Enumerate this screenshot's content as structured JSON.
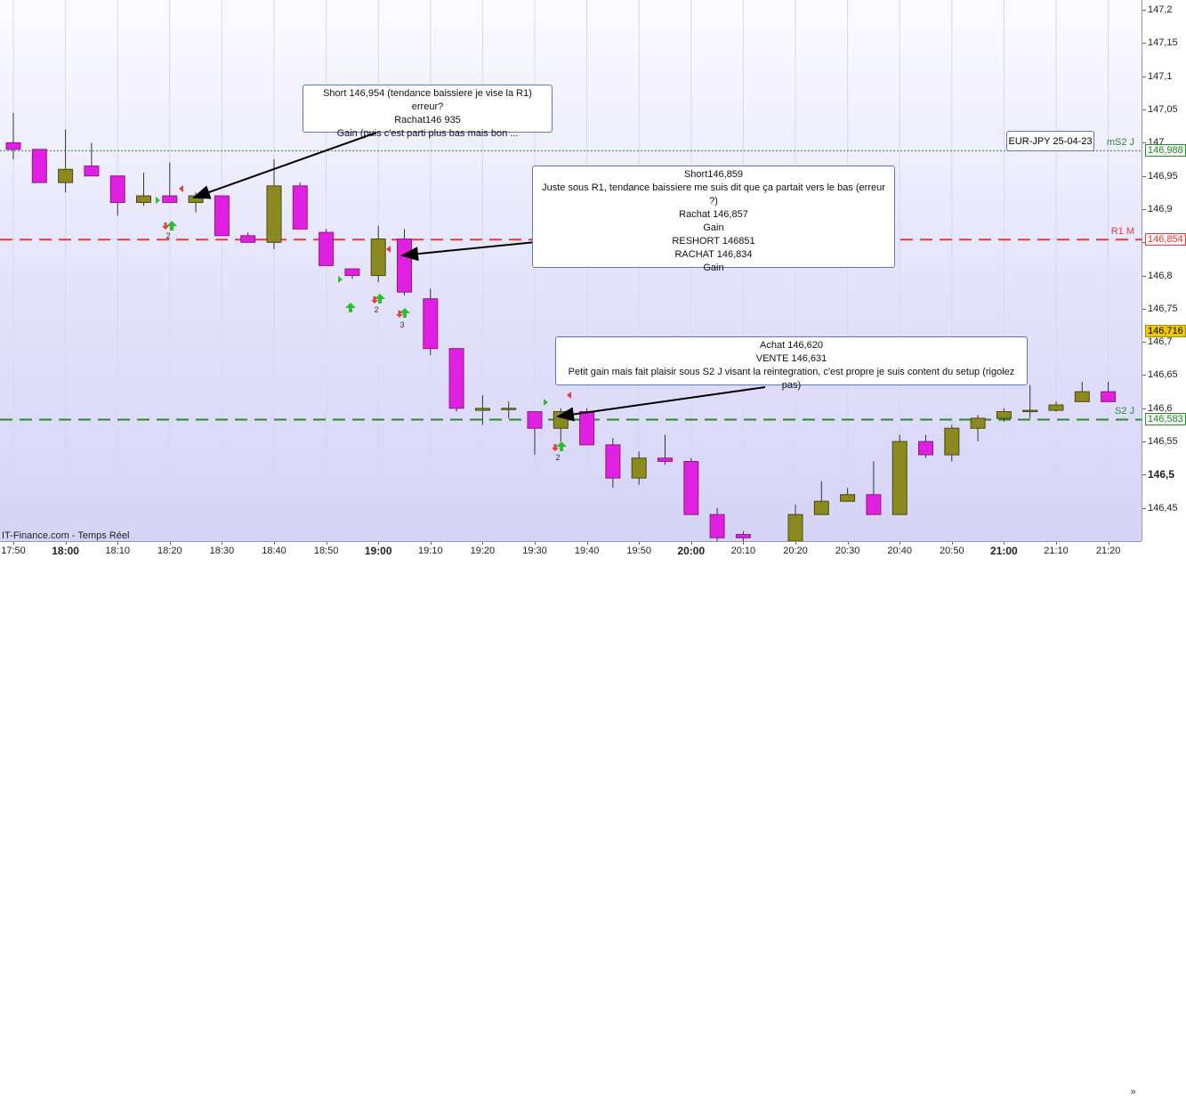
{
  "chart_data": {
    "type": "candlestick",
    "symbol": "EUR-JPY 25-04-23",
    "source": "IT-Finance.com - Temps Réel",
    "x_labels": [
      "17:50",
      "18:00",
      "18:10",
      "18:20",
      "18:30",
      "18:40",
      "18:50",
      "19:00",
      "19:10",
      "19:20",
      "19:30",
      "19:40",
      "19:50",
      "20:00",
      "20:10",
      "20:20",
      "20:30",
      "20:40",
      "20:50",
      "21:00",
      "21:10",
      "21:20"
    ],
    "x_bold": [
      "18:00",
      "19:00",
      "20:00",
      "21:00"
    ],
    "y_labels": [
      "147,2",
      "147,15",
      "147,1",
      "147,05",
      "147",
      "146,95",
      "146,9",
      "146,85",
      "146,8",
      "146,75",
      "146,7",
      "146,65",
      "146,6",
      "146,55",
      "146,5",
      "146,45"
    ],
    "y_bold": [
      "146,5"
    ],
    "ylim": [
      146.4,
      147.215
    ],
    "candles": [
      {
        "t": "17:50",
        "o": 146.99,
        "h": 147.045,
        "l": 146.975,
        "c": 147.0,
        "color": "magenta"
      },
      {
        "t": "17:55",
        "o": 146.99,
        "h": 146.99,
        "l": 146.945,
        "c": 146.94,
        "color": "magenta"
      },
      {
        "t": "18:00",
        "o": 146.94,
        "h": 147.02,
        "l": 146.925,
        "c": 146.96,
        "color": "olive"
      },
      {
        "t": "18:05",
        "o": 146.965,
        "h": 147.0,
        "l": 146.95,
        "c": 146.95,
        "color": "magenta"
      },
      {
        "t": "18:10",
        "o": 146.95,
        "h": 146.95,
        "l": 146.89,
        "c": 146.91,
        "color": "magenta"
      },
      {
        "t": "18:15",
        "o": 146.91,
        "h": 146.955,
        "l": 146.905,
        "c": 146.92,
        "color": "olive"
      },
      {
        "t": "18:20",
        "o": 146.92,
        "h": 146.97,
        "l": 146.91,
        "c": 146.91,
        "color": "magenta"
      },
      {
        "t": "18:25",
        "o": 146.91,
        "h": 146.925,
        "l": 146.895,
        "c": 146.92,
        "color": "olive"
      },
      {
        "t": "18:30",
        "o": 146.92,
        "h": 146.92,
        "l": 146.86,
        "c": 146.86,
        "color": "magenta"
      },
      {
        "t": "18:35",
        "o": 146.86,
        "h": 146.865,
        "l": 146.85,
        "c": 146.85,
        "color": "magenta"
      },
      {
        "t": "18:40",
        "o": 146.85,
        "h": 146.975,
        "l": 146.84,
        "c": 146.935,
        "color": "olive"
      },
      {
        "t": "18:45",
        "o": 146.935,
        "h": 146.94,
        "l": 146.87,
        "c": 146.87,
        "color": "magenta"
      },
      {
        "t": "18:50",
        "o": 146.865,
        "h": 146.87,
        "l": 146.815,
        "c": 146.815,
        "color": "magenta"
      },
      {
        "t": "18:55",
        "o": 146.81,
        "h": 146.81,
        "l": 146.795,
        "c": 146.8,
        "color": "magenta"
      },
      {
        "t": "19:00",
        "o": 146.8,
        "h": 146.875,
        "l": 146.79,
        "c": 146.855,
        "color": "olive"
      },
      {
        "t": "19:05",
        "o": 146.855,
        "h": 146.87,
        "l": 146.77,
        "c": 146.775,
        "color": "magenta"
      },
      {
        "t": "19:10",
        "o": 146.765,
        "h": 146.78,
        "l": 146.68,
        "c": 146.69,
        "color": "magenta"
      },
      {
        "t": "19:15",
        "o": 146.69,
        "h": 146.69,
        "l": 146.595,
        "c": 146.6,
        "color": "magenta"
      },
      {
        "t": "19:20",
        "o": 146.6,
        "h": 146.62,
        "l": 146.575,
        "c": 146.597,
        "color": "olive"
      },
      {
        "t": "19:25",
        "o": 146.6,
        "h": 146.61,
        "l": 146.585,
        "c": 146.6,
        "color": "olive"
      },
      {
        "t": "19:30",
        "o": 146.595,
        "h": 146.595,
        "l": 146.53,
        "c": 146.57,
        "color": "magenta"
      },
      {
        "t": "19:35",
        "o": 146.57,
        "h": 146.6,
        "l": 146.55,
        "c": 146.595,
        "color": "olive"
      },
      {
        "t": "19:40",
        "o": 146.595,
        "h": 146.6,
        "l": 146.545,
        "c": 146.545,
        "color": "magenta"
      },
      {
        "t": "19:45",
        "o": 146.545,
        "h": 146.555,
        "l": 146.48,
        "c": 146.495,
        "color": "magenta"
      },
      {
        "t": "19:50",
        "o": 146.495,
        "h": 146.535,
        "l": 146.485,
        "c": 146.525,
        "color": "olive"
      },
      {
        "t": "19:55",
        "o": 146.525,
        "h": 146.56,
        "l": 146.515,
        "c": 146.52,
        "color": "magenta"
      },
      {
        "t": "20:00",
        "o": 146.52,
        "h": 146.525,
        "l": 146.44,
        "c": 146.44,
        "color": "magenta"
      },
      {
        "t": "20:05",
        "o": 146.44,
        "h": 146.45,
        "l": 146.395,
        "c": 146.405,
        "color": "magenta"
      },
      {
        "t": "20:10",
        "o": 146.405,
        "h": 146.415,
        "l": 146.4,
        "c": 146.41,
        "color": "magenta"
      },
      {
        "t": "20:20",
        "o": 146.4,
        "h": 146.455,
        "l": 146.4,
        "c": 146.44,
        "color": "olive"
      },
      {
        "t": "20:25",
        "o": 146.44,
        "h": 146.49,
        "l": 146.44,
        "c": 146.46,
        "color": "olive"
      },
      {
        "t": "20:30",
        "o": 146.46,
        "h": 146.48,
        "l": 146.46,
        "c": 146.47,
        "color": "olive"
      },
      {
        "t": "20:35",
        "o": 146.47,
        "h": 146.52,
        "l": 146.44,
        "c": 146.44,
        "color": "magenta"
      },
      {
        "t": "20:40",
        "o": 146.44,
        "h": 146.56,
        "l": 146.44,
        "c": 146.55,
        "color": "olive"
      },
      {
        "t": "20:45",
        "o": 146.55,
        "h": 146.56,
        "l": 146.525,
        "c": 146.53,
        "color": "magenta"
      },
      {
        "t": "20:50",
        "o": 146.53,
        "h": 146.575,
        "l": 146.52,
        "c": 146.57,
        "color": "olive"
      },
      {
        "t": "20:55",
        "o": 146.57,
        "h": 146.59,
        "l": 146.55,
        "c": 146.585,
        "color": "olive"
      },
      {
        "t": "21:00",
        "o": 146.585,
        "h": 146.6,
        "l": 146.58,
        "c": 146.595,
        "color": "olive"
      },
      {
        "t": "21:05",
        "o": 146.595,
        "h": 146.635,
        "l": 146.585,
        "c": 146.597,
        "color": "olive"
      },
      {
        "t": "21:10",
        "o": 146.597,
        "h": 146.61,
        "l": 146.595,
        "c": 146.605,
        "color": "olive"
      },
      {
        "t": "21:15",
        "o": 146.61,
        "h": 146.64,
        "l": 146.61,
        "c": 146.625,
        "color": "olive"
      },
      {
        "t": "21:20",
        "o": 146.625,
        "h": 146.64,
        "l": 146.61,
        "c": 146.61,
        "color": "magenta"
      }
    ],
    "levels": [
      {
        "name": "mS2 J",
        "value": 146.988,
        "label": "146,988",
        "color": "#2b8a2b",
        "style": "dotted"
      },
      {
        "name": "R1 M",
        "value": 146.854,
        "label": "146,854",
        "color": "#e83b3b",
        "style": "dashed"
      },
      {
        "name": "S2 J",
        "value": 146.583,
        "label": "146,583",
        "color": "#2b8a2b",
        "style": "dashed"
      }
    ],
    "current_price": {
      "value": 146.716,
      "label": "146,716",
      "color": "#f0c800"
    },
    "annotations": [
      {
        "lines": [
          "Short 146,954 (tendance baissiere je vise la R1) erreur?",
          "Rachat146 935",
          "Gain (puis c'est parti plus bas mais bon ..."
        ],
        "target": "18:25"
      },
      {
        "lines": [
          "Short146,859",
          "Juste sous R1, tendance baissiere me suis dit que ça partait vers le bas (erreur ?)",
          "Rachat 146,857",
          "Gain",
          "RESHORT 146851",
          "RACHAT 146,834",
          "Gain"
        ],
        "target": "19:05"
      },
      {
        "lines": [
          "Achat 146,620",
          "VENTE 146,631",
          "Petit gain mais fait plaisir sous S2 J visant la reintegration, c'est propre je suis content du setup (rigolez pas)"
        ],
        "target": "19:35"
      }
    ],
    "signal_counts": [
      "2",
      "2",
      "3",
      "2"
    ]
  },
  "ui": {
    "scroll_right": "»"
  }
}
